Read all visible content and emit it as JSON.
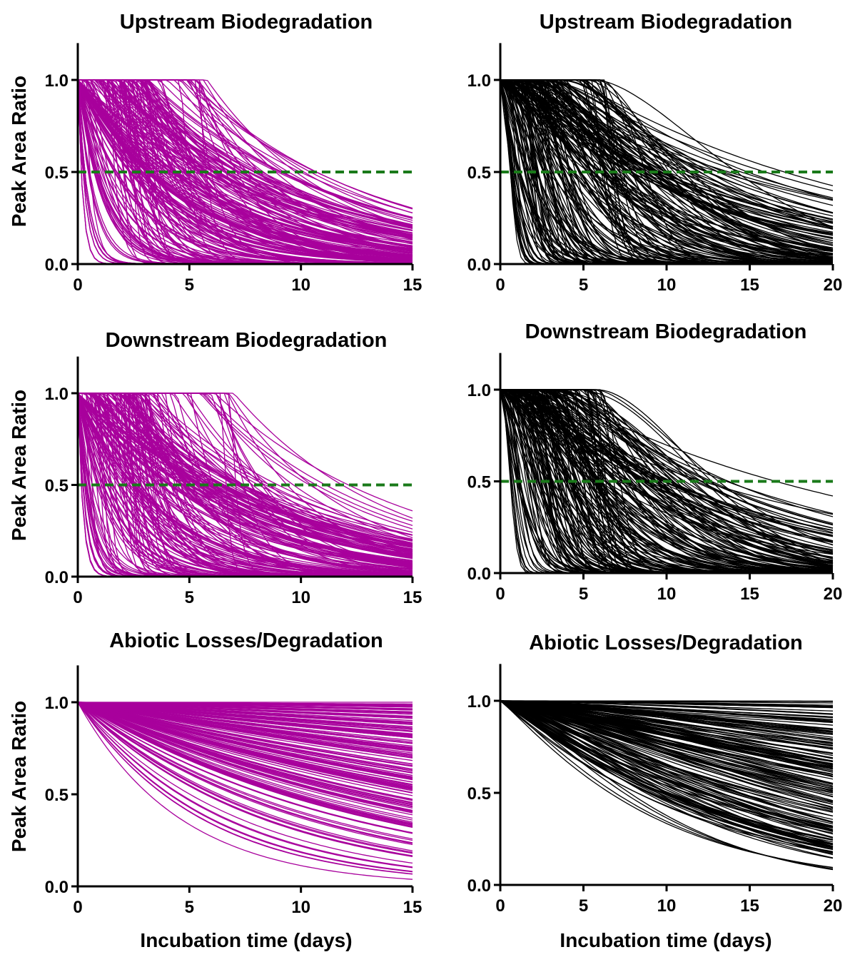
{
  "figure": {
    "ylabel": "Peak Area Ratio",
    "xlabel": "Incubation time (days)"
  },
  "colors": {
    "magenta": "#a8009c",
    "black": "#000000",
    "threshold": "#1a7a1a"
  },
  "chart_data": [
    {
      "type": "line",
      "title": "Upstream Biodegradation",
      "color": "#a8009c",
      "xlim": [
        0,
        15
      ],
      "ylim": [
        0,
        1.2
      ],
      "xticks": [
        0,
        5,
        10,
        15
      ],
      "yticks": [
        0.0,
        0.5,
        1.0
      ],
      "ylabel": "Peak Area Ratio",
      "xlabel": "",
      "threshold": 0.5,
      "model": "y = 1 for x <= lag; exp(-k (x - lag)) after",
      "curves": {
        "count": 220,
        "lag_range": [
          0,
          6.2
        ],
        "half_life_range_days": [
          0.2,
          9
        ]
      }
    },
    {
      "type": "line",
      "title": "Upstream Biodegradation",
      "color": "#000000",
      "xlim": [
        0,
        20
      ],
      "ylim": [
        0,
        1.2
      ],
      "xticks": [
        0,
        5,
        10,
        15,
        20
      ],
      "yticks": [
        0.0,
        0.5,
        1.0
      ],
      "ylabel": "",
      "xlabel": "",
      "threshold": 0.5,
      "model": "y = 1 for x <= lag; exp(-(k (x - lag))^b) after",
      "curves": {
        "count": 220,
        "lag_range": [
          0,
          6.6
        ],
        "half_life_range_days": [
          0.5,
          20
        ]
      }
    },
    {
      "type": "line",
      "title": "Downstream Biodegradation",
      "color": "#a8009c",
      "xlim": [
        0,
        15
      ],
      "ylim": [
        0,
        1.2
      ],
      "xticks": [
        0,
        5,
        10,
        15
      ],
      "yticks": [
        0.0,
        0.5,
        1.0
      ],
      "ylabel": "Peak Area Ratio",
      "xlabel": "",
      "threshold": 0.5,
      "model": "y = 1 for x <= lag; exp(-k (x - lag)) after",
      "curves": {
        "count": 220,
        "lag_range": [
          0,
          7
        ],
        "half_life_range_days": [
          0.2,
          10
        ]
      }
    },
    {
      "type": "line",
      "title": "Downstream Biodegradation",
      "color": "#000000",
      "xlim": [
        0,
        20
      ],
      "ylim": [
        0,
        1.2
      ],
      "xticks": [
        0,
        5,
        10,
        15,
        20
      ],
      "yticks": [
        0.0,
        0.5,
        1.0
      ],
      "ylabel": "",
      "xlabel": "",
      "threshold": 0.5,
      "model": "y = 1 for x <= lag; exp(-(k (x - lag))^b) after",
      "curves": {
        "count": 220,
        "lag_range": [
          0,
          6
        ],
        "half_life_range_days": [
          0.5,
          15
        ]
      }
    },
    {
      "type": "line",
      "title": "Abiotic Losses/Degradation",
      "color": "#a8009c",
      "xlim": [
        0,
        15
      ],
      "ylim": [
        0,
        1.2
      ],
      "xticks": [
        0,
        5,
        10,
        15
      ],
      "yticks": [
        0.0,
        0.5,
        1.0
      ],
      "ylabel": "Peak Area Ratio",
      "xlabel": "Incubation time (days)",
      "model": "y = exp(-k x)",
      "end_value_range_at_x15": [
        0.03,
        1.0
      ],
      "curves": {
        "count": 160
      }
    },
    {
      "type": "line",
      "title": "Abiotic Losses/Degradation",
      "color": "#000000",
      "xlim": [
        0,
        20
      ],
      "ylim": [
        0,
        1.2
      ],
      "xticks": [
        0,
        5,
        10,
        15,
        20
      ],
      "yticks": [
        0.0,
        0.5,
        1.0
      ],
      "ylabel": "",
      "xlabel": "Incubation time (days)",
      "model": "y = exp(-(k x)^b)",
      "end_value_range_at_x20": [
        0.08,
        1.0
      ],
      "curves": {
        "count": 170
      }
    }
  ]
}
